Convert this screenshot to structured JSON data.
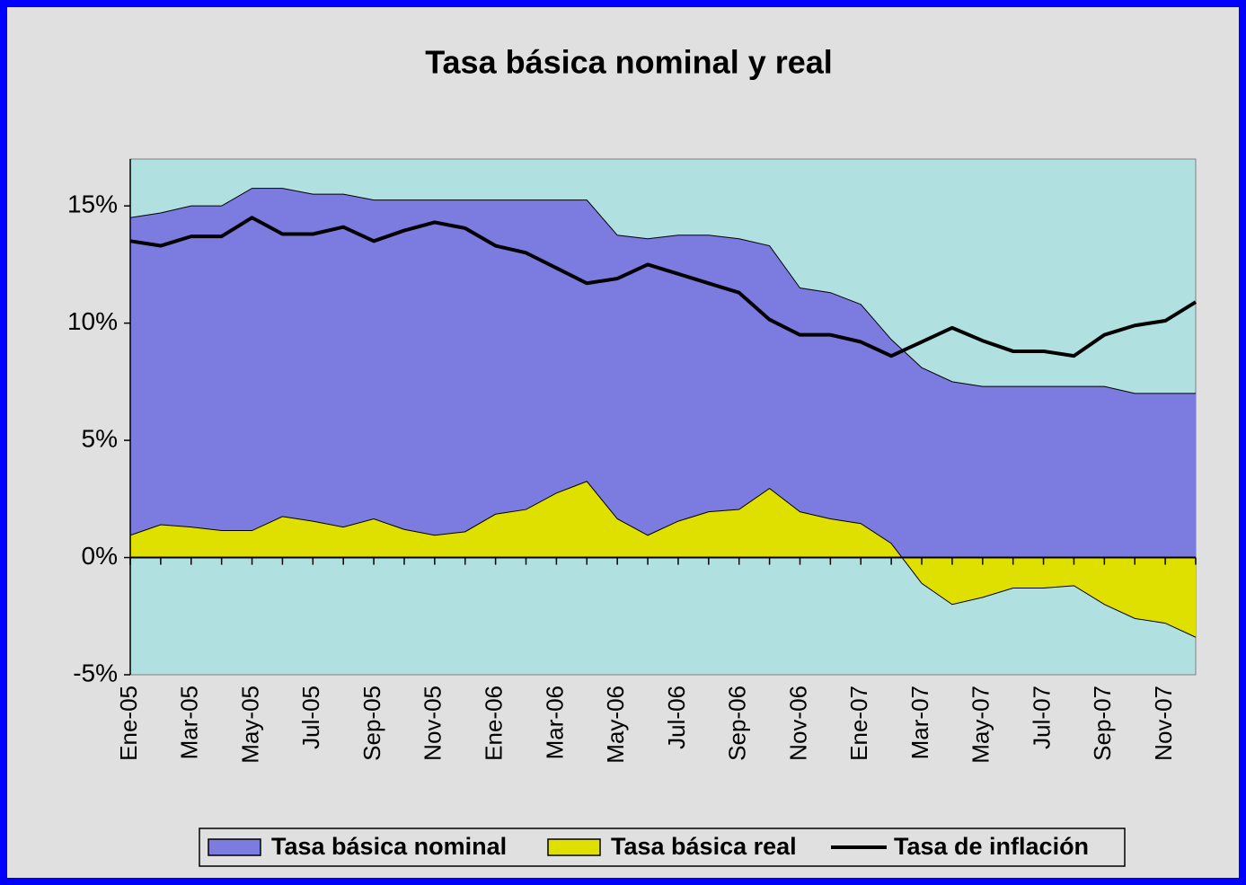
{
  "chart_data": {
    "type": "area",
    "title": "Tasa básica nominal y real",
    "categories": [
      "Ene-05",
      null,
      "Mar-05",
      null,
      "May-05",
      null,
      "Jul-05",
      null,
      "Sep-05",
      null,
      "Nov-05",
      null,
      "Ene-06",
      null,
      "Mar-06",
      null,
      "May-06",
      null,
      "Jul-06",
      null,
      "Sep-06",
      null,
      "Nov-06",
      null,
      "Ene-07",
      null,
      "Mar-07",
      null,
      "May-07",
      null,
      "Jul-07",
      null,
      "Sep-07",
      null,
      "Nov-07",
      null
    ],
    "series": [
      {
        "name": "Tasa básica nominal",
        "color": "#7b7be0",
        "type": "area",
        "values": [
          14.5,
          14.7,
          15.0,
          15.0,
          15.75,
          15.75,
          15.5,
          15.5,
          15.25,
          15.25,
          15.25,
          15.25,
          15.25,
          15.25,
          15.25,
          15.25,
          13.75,
          13.6,
          13.75,
          13.75,
          13.6,
          13.3,
          11.5,
          11.3,
          10.8,
          9.3,
          8.1,
          7.5,
          7.3,
          7.3,
          7.3,
          7.3,
          7.3,
          7.0,
          7.0,
          7.0
        ]
      },
      {
        "name": "Tasa básica real",
        "color": "#e0e000",
        "type": "area",
        "values": [
          0.95,
          1.4,
          1.3,
          1.15,
          1.15,
          1.75,
          1.55,
          1.3,
          1.65,
          1.2,
          0.95,
          1.1,
          1.85,
          2.05,
          2.75,
          3.25,
          1.65,
          0.95,
          1.55,
          1.95,
          2.05,
          2.95,
          1.95,
          1.65,
          1.45,
          0.6,
          -1.1,
          -2.0,
          -1.7,
          -1.3,
          -1.3,
          -1.2,
          -2.0,
          -2.6,
          -2.8,
          -3.4
        ]
      },
      {
        "name": "Tasa de inflación",
        "color": "#000000",
        "type": "line",
        "values": [
          13.5,
          13.3,
          13.7,
          13.7,
          14.5,
          13.8,
          13.8,
          14.1,
          13.5,
          13.95,
          14.3,
          14.05,
          13.3,
          13.0,
          12.35,
          11.7,
          11.9,
          12.5,
          12.1,
          11.7,
          11.3,
          10.15,
          9.5,
          9.5,
          9.2,
          8.6,
          9.2,
          9.8,
          9.25,
          8.8,
          8.8,
          8.6,
          9.5,
          9.9,
          10.1,
          10.9
        ]
      }
    ],
    "ylim": [
      -5,
      17
    ],
    "yticks": [
      {
        "value": -5,
        "label": "-5%"
      },
      {
        "value": 0,
        "label": "0%"
      },
      {
        "value": 5,
        "label": "5%"
      },
      {
        "value": 10,
        "label": "10%"
      },
      {
        "value": 15,
        "label": "15%"
      }
    ],
    "grid": false,
    "legend": "bottom"
  }
}
